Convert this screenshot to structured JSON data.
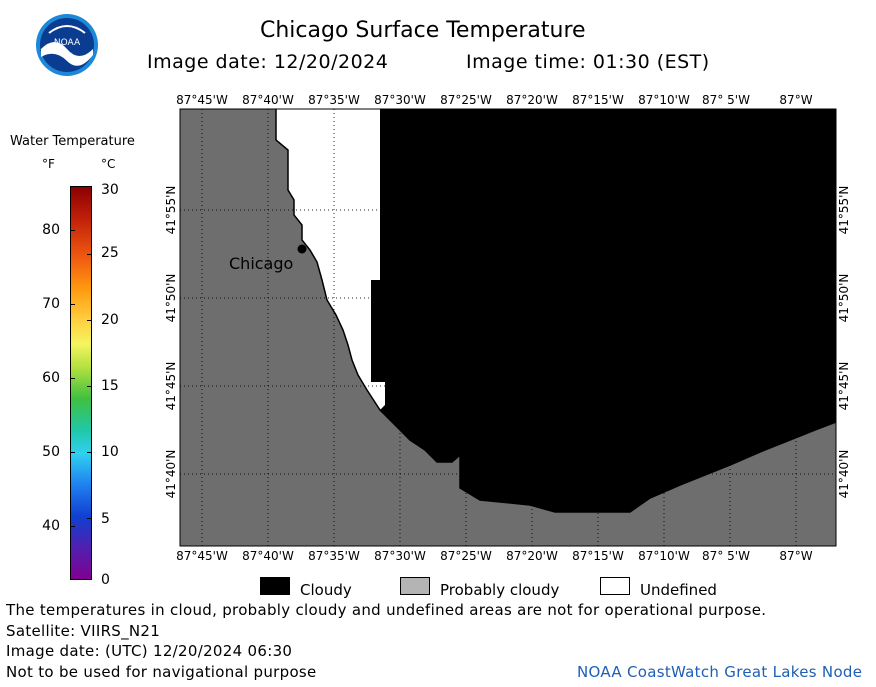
{
  "header": {
    "title": "Chicago Surface Temperature",
    "image_date_label": "Image date: 12/20/2024",
    "image_time_label": "Image time: 01:30 (EST)"
  },
  "logo": {
    "name": "noaa-logo",
    "text": "NOAA"
  },
  "legend": {
    "title": "Water Temperature",
    "unit_f": "°F",
    "unit_c": "°C",
    "f_ticks": [
      "80",
      "70",
      "60",
      "50",
      "40"
    ],
    "c_ticks": [
      "30",
      "25",
      "20",
      "15",
      "10",
      "5",
      "0"
    ]
  },
  "map": {
    "lon_labels": [
      "87°45'W",
      "87°40'W",
      "87°35'W",
      "87°30'W",
      "87°25'W",
      "87°20'W",
      "87°15'W",
      "87°10'W",
      "87° 5'W",
      "87°W"
    ],
    "lat_labels": [
      "41°55'N",
      "41°50'N",
      "41°45'N",
      "41°40'N"
    ],
    "city_label": "Chicago",
    "colors": {
      "land": "#6e6e6e",
      "cloudy": "#000000",
      "probably_cloudy": "#b4b4b4",
      "undefined": "#ffffff"
    }
  },
  "key": {
    "cloudy": "Cloudy",
    "probably_cloudy": "Probably cloudy",
    "undefined": "Undefined"
  },
  "footer": {
    "note": "The temperatures in cloud, probably cloudy and undefined areas are not for operational purpose.",
    "satellite": "Satellite: VIIRS_N21",
    "utc_date": "Image date: (UTC) 12/20/2024  06:30",
    "nav_warning": "Not to be used for navigational purpose",
    "credit": "NOAA CoastWatch Great Lakes Node"
  }
}
